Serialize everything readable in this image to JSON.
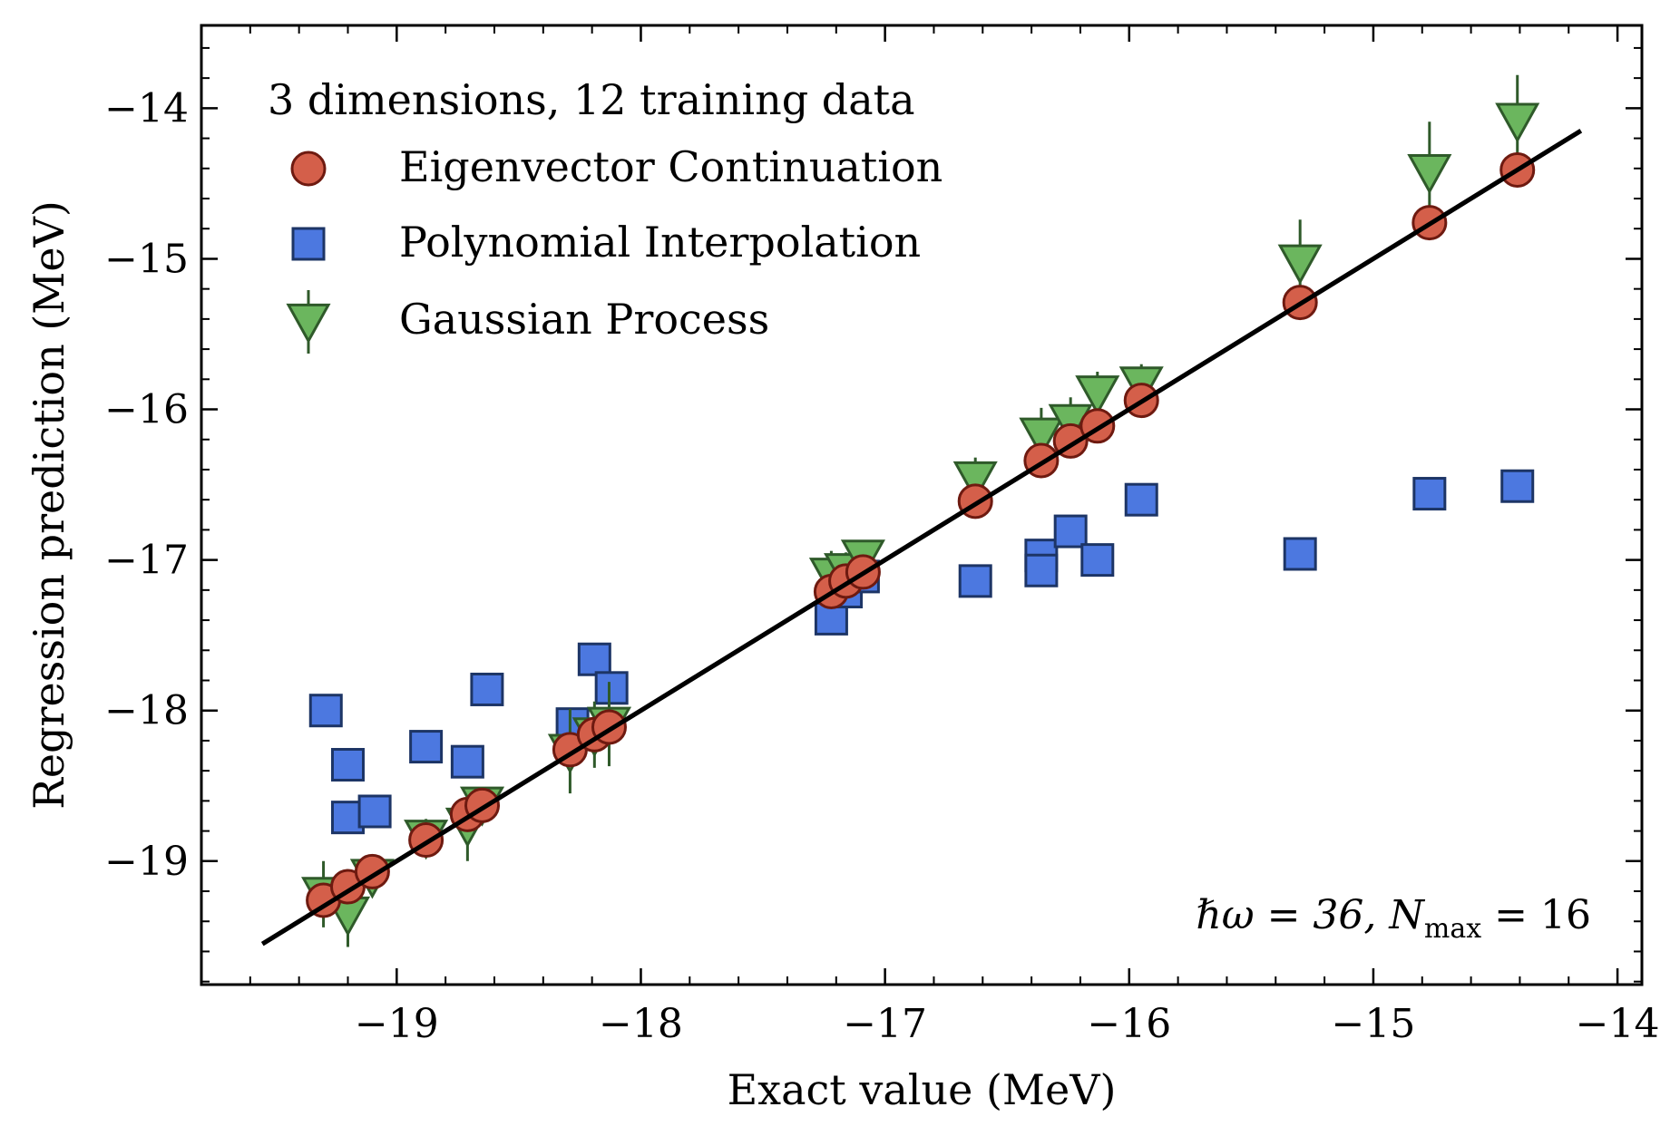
{
  "chart_data": {
    "type": "scatter",
    "title": "",
    "xlabel": "Exact value (MeV)",
    "ylabel": "Regression prediction (MeV)",
    "xlim": [
      -19.8,
      -13.9
    ],
    "ylim": [
      -19.82,
      -13.45
    ],
    "xticks": [
      -19,
      -18,
      -17,
      -16,
      -15,
      -14
    ],
    "yticks": [
      -14,
      -15,
      -16,
      -17,
      -18,
      -19
    ],
    "xtick_labels": [
      "−19",
      "−18",
      "−17",
      "−16",
      "−15",
      "−14"
    ],
    "ytick_labels": [
      "−14",
      "−15",
      "−16",
      "−17",
      "−18",
      "−19"
    ],
    "grid": false,
    "legend": {
      "title": "3 dimensions, 12 training data",
      "position": "top-left",
      "entries": [
        "Eigenvector Continuation",
        "Polynomial Interpolation",
        "Gaussian Process"
      ]
    },
    "annotation": {
      "text_main": "ℏω = 36, N",
      "text_sub": "max",
      "text_tail": " = 16",
      "position": "bottom-right"
    },
    "reference_line": {
      "x": [
        -19.55,
        -14.15
      ],
      "y": [
        -19.55,
        -14.15
      ],
      "color": "#000000"
    },
    "x": [
      -19.3,
      -19.2,
      -19.1,
      -18.88,
      -18.71,
      -18.65,
      -18.29,
      -18.19,
      -18.13,
      -17.22,
      -17.16,
      -17.09,
      -16.63,
      -16.36,
      -16.24,
      -16.13,
      -15.95,
      -15.3,
      -14.77,
      -14.41
    ],
    "series": [
      {
        "name": "Eigenvector Continuation",
        "marker": "circle",
        "color": "#d45f4a",
        "edge": "#6e1a10",
        "values": [
          -19.26,
          -19.17,
          -19.07,
          -18.86,
          -18.69,
          -18.63,
          -18.26,
          -18.16,
          -18.11,
          -17.21,
          -17.14,
          -17.08,
          -16.61,
          -16.34,
          -16.21,
          -16.11,
          -15.94,
          -15.29,
          -14.76,
          -14.41
        ]
      },
      {
        "name": "Polynomial Interpolation",
        "marker": "square",
        "color": "#4c78e0",
        "edge": "#1d3566",
        "points": [
          [
            -19.29,
            -18.0
          ],
          [
            -19.2,
            -18.36
          ],
          [
            -19.2,
            -18.71
          ],
          [
            -19.09,
            -18.67
          ],
          [
            -18.88,
            -18.24
          ],
          [
            -18.71,
            -18.34
          ],
          [
            -18.63,
            -17.86
          ],
          [
            -18.28,
            -18.09
          ],
          [
            -18.19,
            -17.66
          ],
          [
            -18.12,
            -17.85
          ],
          [
            -17.22,
            -17.39
          ],
          [
            -17.16,
            -17.21
          ],
          [
            -17.09,
            -17.11
          ],
          [
            -16.63,
            -17.14
          ],
          [
            -16.36,
            -16.97
          ],
          [
            -16.36,
            -17.07
          ],
          [
            -16.24,
            -16.81
          ],
          [
            -16.13,
            -17.0
          ],
          [
            -15.95,
            -16.6
          ],
          [
            -15.3,
            -16.96
          ],
          [
            -14.77,
            -16.56
          ],
          [
            -14.41,
            -16.51
          ]
        ]
      },
      {
        "name": "Gaussian Process",
        "marker": "triangle-down",
        "color": "#6bb65e",
        "edge": "#2f5a2a",
        "values": [
          -19.22,
          -19.35,
          -19.1,
          -18.84,
          -18.76,
          -18.62,
          -18.27,
          -18.16,
          -18.09,
          -17.1,
          -17.07,
          -16.98,
          -16.46,
          -16.17,
          -16.08,
          -15.89,
          -15.83,
          -15.02,
          -14.42,
          -14.08
        ],
        "error": [
          0.22,
          0.22,
          0.12,
          0.12,
          0.24,
          0.08,
          0.28,
          0.22,
          0.28,
          0.16,
          0.12,
          0.1,
          0.14,
          0.18,
          0.16,
          0.14,
          0.13,
          0.28,
          0.33,
          0.3
        ]
      }
    ]
  }
}
